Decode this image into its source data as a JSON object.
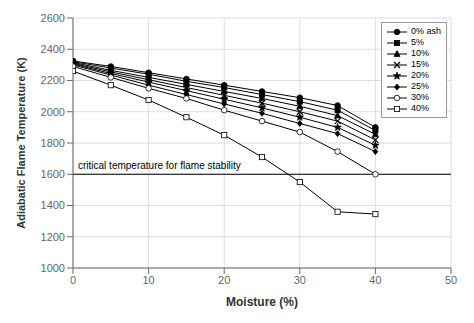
{
  "chart_data": {
    "type": "line",
    "xlabel": "Moisture (%)",
    "ylabel": "Adiabatic Flame Temperature (K)",
    "xlim": [
      0,
      50
    ],
    "ylim": [
      1000,
      2600
    ],
    "xticks": [
      0,
      10,
      20,
      30,
      40,
      50
    ],
    "yticks": [
      1000,
      1200,
      1400,
      1600,
      1800,
      2000,
      2200,
      2400,
      2600
    ],
    "grid": true,
    "legend": "upper right",
    "annotations": [
      {
        "type": "hline",
        "y": 1600,
        "text": "critical temperature for flame stability"
      }
    ],
    "series": [
      {
        "name": "0% ash",
        "color": "#000000",
        "marker": "circle",
        "x": [
          0,
          5,
          10,
          15,
          20,
          25,
          30,
          35,
          40
        ],
        "values": [
          2325,
          2290,
          2250,
          2210,
          2170,
          2130,
          2090,
          2040,
          1900
        ]
      },
      {
        "name": "5%",
        "color": "#000000",
        "marker": "square",
        "x": [
          0,
          5,
          10,
          15,
          20,
          25,
          30,
          35,
          40
        ],
        "values": [
          2320,
          2280,
          2240,
          2195,
          2155,
          2110,
          2065,
          2010,
          1880
        ]
      },
      {
        "name": "10%",
        "color": "#000000",
        "marker": "triangle",
        "x": [
          0,
          5,
          10,
          15,
          20,
          25,
          30,
          35,
          40
        ],
        "values": [
          2315,
          2265,
          2220,
          2175,
          2130,
          2085,
          2035,
          1975,
          1855
        ]
      },
      {
        "name": "15%",
        "color": "#000000",
        "marker": "x",
        "x": [
          0,
          5,
          10,
          15,
          20,
          25,
          30,
          35,
          40
        ],
        "values": [
          2310,
          2255,
          2205,
          2155,
          2105,
          2055,
          2000,
          1940,
          1820
        ]
      },
      {
        "name": "20%",
        "color": "#000000",
        "marker": "star",
        "x": [
          0,
          5,
          10,
          15,
          20,
          25,
          30,
          35,
          40
        ],
        "values": [
          2305,
          2245,
          2190,
          2135,
          2080,
          2025,
          1965,
          1900,
          1785
        ]
      },
      {
        "name": "25%",
        "color": "#000000",
        "marker": "diamond",
        "x": [
          0,
          5,
          10,
          15,
          20,
          25,
          30,
          35,
          40
        ],
        "values": [
          2300,
          2235,
          2170,
          2110,
          2050,
          1990,
          1925,
          1860,
          1745
        ]
      },
      {
        "name": "30%",
        "color": "#000000",
        "marker": "circle-open",
        "x": [
          0,
          5,
          10,
          15,
          20,
          25,
          30,
          35,
          40
        ],
        "values": [
          2290,
          2220,
          2150,
          2085,
          2010,
          1940,
          1870,
          1745,
          1600
        ]
      },
      {
        "name": "40%",
        "color": "#000000",
        "marker": "square-open",
        "x": [
          0,
          5,
          10,
          15,
          20,
          25,
          30,
          35,
          40
        ],
        "values": [
          2260,
          2170,
          2075,
          1965,
          1850,
          1710,
          1550,
          1360,
          1345
        ]
      }
    ]
  }
}
